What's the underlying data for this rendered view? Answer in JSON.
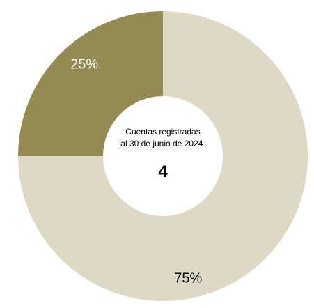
{
  "chart_data": {
    "type": "pie",
    "variant": "donut",
    "categories": [
      "",
      ""
    ],
    "values": [
      75,
      25
    ],
    "labels": [
      "75%",
      "25%"
    ],
    "colors": [
      "#DDD9C4",
      "#948A54"
    ],
    "label_colors": [
      "#000000",
      "#ffffff"
    ],
    "title": "",
    "center": {
      "caption_lines": [
        "Cuentas registradas",
        "al 30 de junio de 2024."
      ],
      "value": "4"
    }
  }
}
